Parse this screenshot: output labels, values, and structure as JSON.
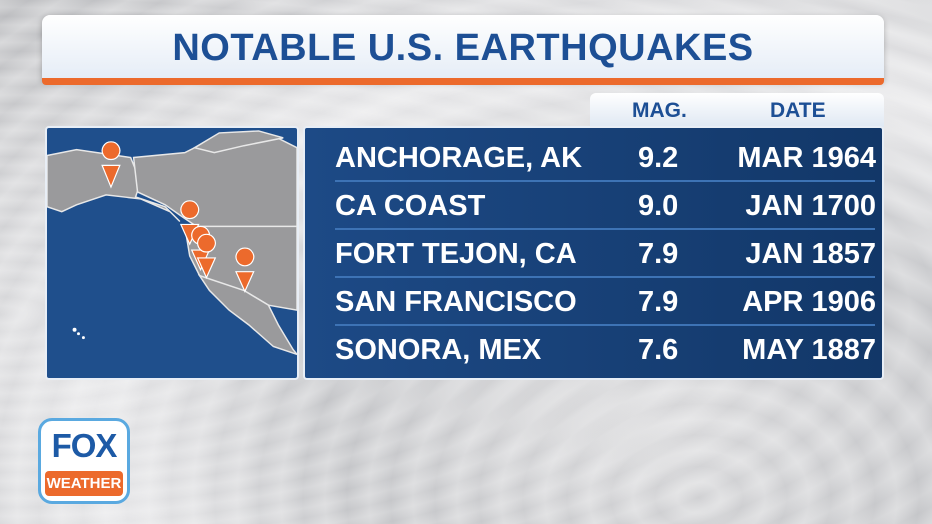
{
  "title": "NOTABLE U.S. EARTHQUAKES",
  "columns": {
    "magnitude": "MAG.",
    "date": "DATE"
  },
  "rows": [
    {
      "location": "ANCHORAGE, AK",
      "magnitude": "9.2",
      "date": "MAR 1964"
    },
    {
      "location": "CA COAST",
      "magnitude": "9.0",
      "date": "JAN 1700"
    },
    {
      "location": "FORT TEJON, CA",
      "magnitude": "7.9",
      "date": "JAN 1857"
    },
    {
      "location": "SAN FRANCISCO",
      "magnitude": "7.9",
      "date": "APR 1906"
    },
    {
      "location": "SONORA, MEX",
      "magnitude": "7.6",
      "date": "MAY 1887"
    }
  ],
  "map": {
    "pin_icon": "map-pin-icon",
    "pin_count": 5
  },
  "logo": {
    "top": "FOX",
    "bottom": "WEATHER"
  },
  "colors": {
    "brand_blue": "#1d4f95",
    "accent_orange": "#ec6a2c",
    "panel_blue": "#1d4a86"
  }
}
